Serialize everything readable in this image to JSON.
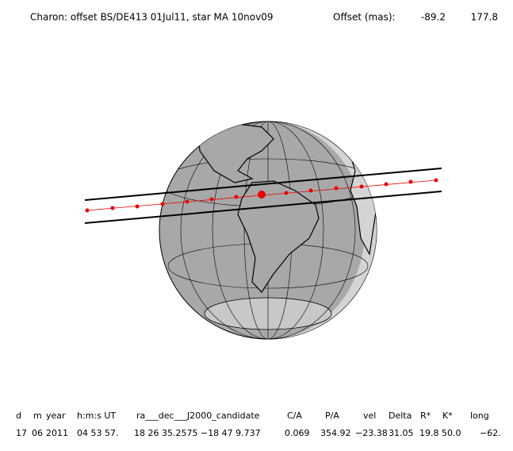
{
  "header": {
    "title": "Charon: offset BS/DE413 01Jul11, star MA 10nov09",
    "offset_label": "Offset (mas):",
    "offset_x": "-89.2",
    "offset_y": "177.8"
  },
  "table": {
    "columns": [
      "d",
      "m",
      "year",
      "h:m:s UT",
      "ra___dec___J2000_candidate",
      "C/A",
      "P/A",
      "vel",
      "Delta",
      "R*",
      "K*",
      "long"
    ],
    "rows": [
      [
        "17",
        "06",
        "2011",
        "04 53 57.",
        "18 26 35.2575 −18 47   9.737",
        "0.069",
        "354.92",
        "−23.38",
        "31.05",
        "19.8",
        "50.0",
        "−62."
      ]
    ]
  }
}
